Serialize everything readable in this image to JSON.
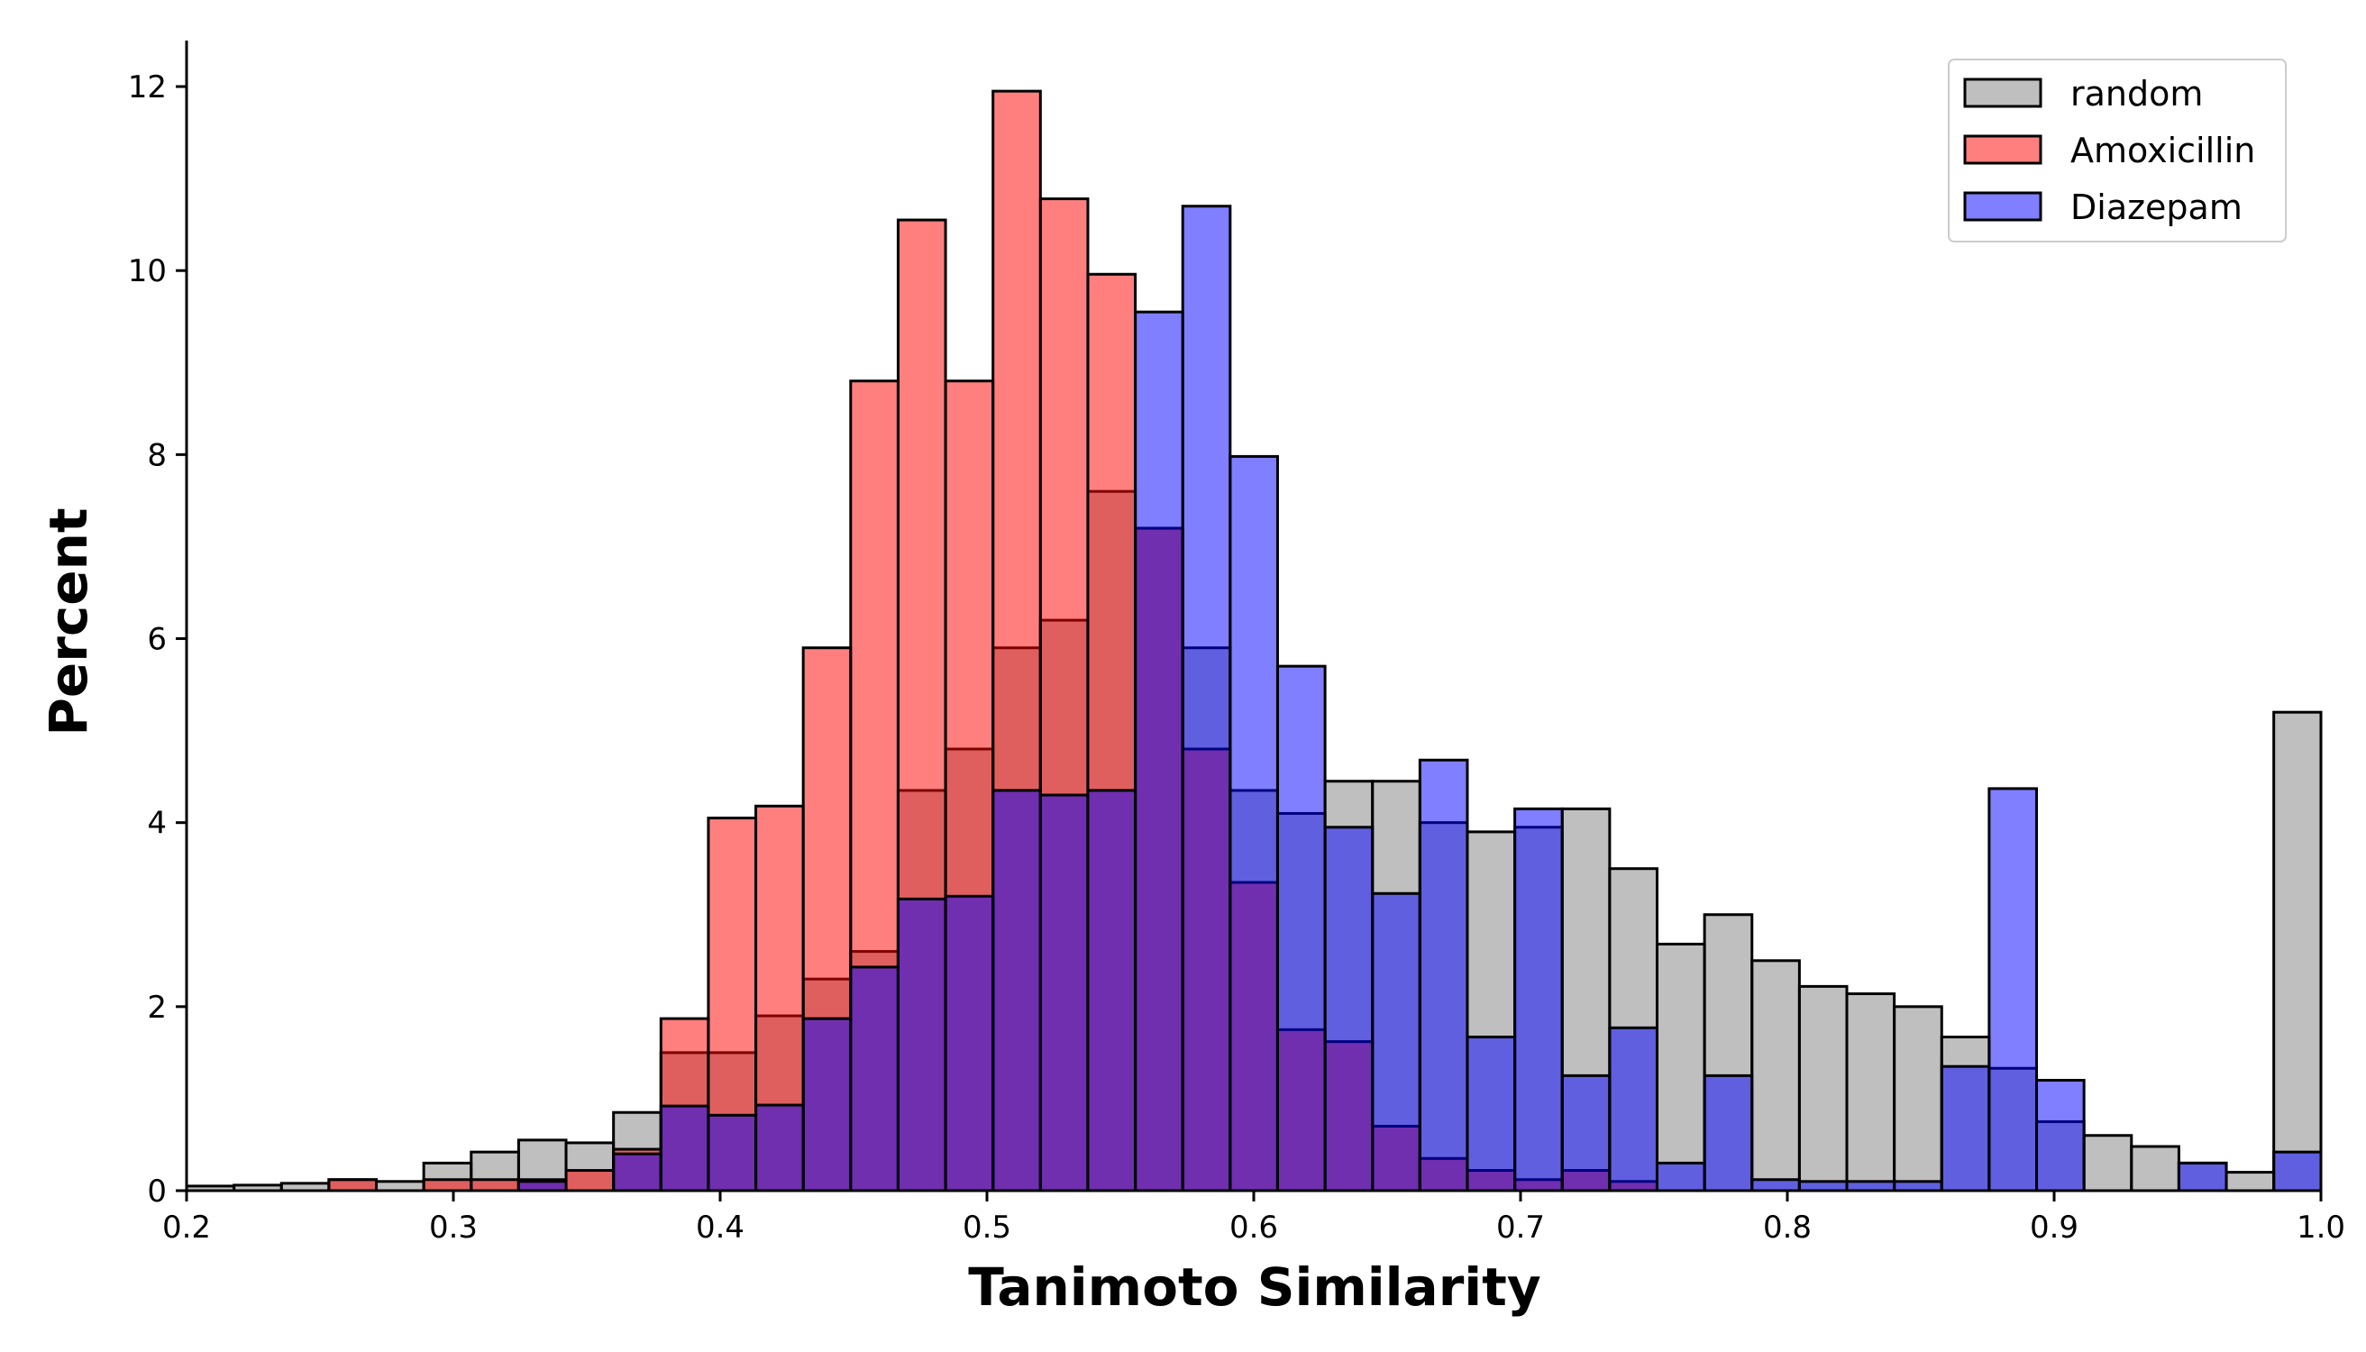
{
  "chart_data": {
    "type": "bar",
    "subtype": "overlaid-histogram",
    "title": "",
    "xlabel": "Tanimoto Similarity",
    "ylabel": "Percent",
    "xlim": [
      0.2,
      1.0
    ],
    "ylim": [
      0,
      12.5
    ],
    "xticks": [
      "0.2",
      "0.3",
      "0.4",
      "0.5",
      "0.6",
      "0.7",
      "0.8",
      "0.9",
      "1.0"
    ],
    "yticks": [
      "0",
      "2",
      "4",
      "6",
      "8",
      "10",
      "12"
    ],
    "grid": false,
    "legend_position": "top-right",
    "bin_width": 0.01778,
    "bin_edges_start": 0.2,
    "series": [
      {
        "name": "random",
        "color": "#808080",
        "opacity": 0.5,
        "values": [
          0.05,
          0.06,
          0.08,
          0.12,
          0.1,
          0.3,
          0.42,
          0.55,
          0.52,
          0.85,
          1.5,
          1.5,
          1.9,
          2.3,
          2.6,
          4.35,
          4.8,
          5.9,
          6.2,
          7.6,
          7.2,
          5.9,
          4.35,
          4.1,
          4.45,
          4.45,
          4.0,
          3.9,
          3.95,
          4.15,
          3.5,
          2.68,
          3.0,
          2.5,
          2.22,
          2.14,
          2.0,
          1.67,
          1.33,
          0.75,
          0.6,
          0.48,
          0.3,
          0.2,
          5.2
        ]
      },
      {
        "name": "Amoxicillin",
        "color": "#ff0000",
        "opacity": 0.5,
        "values": [
          0,
          0,
          0,
          0.12,
          0,
          0.12,
          0.12,
          0.12,
          0.22,
          0.45,
          1.87,
          4.05,
          4.18,
          5.9,
          8.8,
          10.55,
          8.8,
          11.95,
          10.78,
          9.96,
          7.2,
          4.8,
          3.35,
          1.75,
          1.62,
          0.7,
          0.35,
          0.22,
          0.12,
          0.22,
          0.1,
          0,
          0,
          0,
          0,
          0,
          0,
          0,
          0,
          0,
          0,
          0,
          0,
          0,
          0
        ]
      },
      {
        "name": "Diazepam",
        "color": "#0000ff",
        "opacity": 0.5,
        "values": [
          0,
          0,
          0,
          0,
          0,
          0,
          0,
          0.1,
          0,
          0.4,
          0.92,
          0.82,
          0.93,
          1.87,
          2.43,
          3.17,
          3.2,
          4.35,
          4.3,
          4.35,
          9.55,
          10.7,
          7.98,
          5.7,
          3.95,
          3.23,
          4.68,
          1.67,
          4.15,
          1.25,
          1.77,
          0.3,
          1.25,
          0.12,
          0.1,
          0.1,
          0.1,
          1.35,
          4.37,
          1.2,
          0,
          0,
          0.3,
          0,
          0.42
        ]
      }
    ]
  }
}
